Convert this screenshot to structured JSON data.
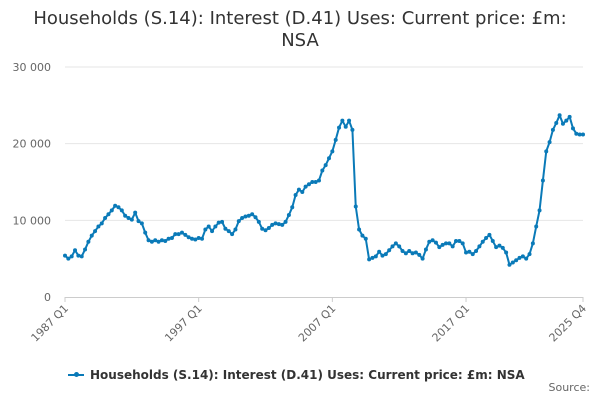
{
  "chart_data": {
    "type": "line",
    "title": "Households (S.14): Interest (D.41) Uses: Current price: £m: NSA",
    "xlabel": "",
    "ylabel": "",
    "ylim": [
      0,
      30000
    ],
    "yticks": [
      0,
      10000,
      20000,
      30000
    ],
    "ytick_labels": [
      "0",
      "10 000",
      "20 000",
      "30 000"
    ],
    "xtick_labels": [
      "1987 Q1",
      "1997 Q1",
      "2007 Q1",
      "2017 Q1",
      "2025 Q4"
    ],
    "grid": true,
    "legend_position": "bottom-left",
    "series": [
      {
        "name": "Households (S.14): Interest (D.41) Uses: Current price: £m: NSA",
        "color": "#0a7ab8",
        "x_start": "1987 Q1",
        "frequency": "quarterly",
        "values": [
          5400,
          5000,
          5300,
          6100,
          5400,
          5300,
          6200,
          7200,
          8000,
          8600,
          9200,
          9600,
          10300,
          10800,
          11300,
          11900,
          11700,
          11300,
          10600,
          10300,
          10100,
          11000,
          9900,
          9600,
          8400,
          7400,
          7200,
          7400,
          7200,
          7400,
          7300,
          7600,
          7700,
          8200,
          8200,
          8400,
          8100,
          7800,
          7600,
          7500,
          7700,
          7600,
          8800,
          9200,
          8600,
          9200,
          9700,
          9800,
          8900,
          8600,
          8200,
          8800,
          9900,
          10300,
          10500,
          10600,
          10800,
          10400,
          9800,
          8900,
          8700,
          9000,
          9400,
          9600,
          9500,
          9400,
          9800,
          10700,
          11700,
          13300,
          14000,
          13700,
          14400,
          14700,
          15000,
          15000,
          15200,
          16500,
          17200,
          18100,
          19000,
          20500,
          22100,
          23000,
          22200,
          23000,
          21800,
          11800,
          8800,
          8000,
          7600,
          4900,
          5100,
          5300,
          5900,
          5400,
          5600,
          6100,
          6600,
          7000,
          6600,
          6000,
          5700,
          6000,
          5700,
          5800,
          5500,
          5000,
          6200,
          7200,
          7400,
          7100,
          6500,
          6800,
          7000,
          7000,
          6600,
          7300,
          7300,
          7000,
          5800,
          5900,
          5600,
          6000,
          6600,
          7200,
          7700,
          8100,
          7300,
          6500,
          6700,
          6400,
          5800,
          4200,
          4500,
          4800,
          5100,
          5300,
          5000,
          5600,
          7000,
          9200,
          11300,
          15200,
          19000,
          20200,
          21800,
          22700,
          23700,
          22600,
          23000,
          23500,
          22000,
          21300,
          21200,
          21200
        ]
      }
    ]
  },
  "legend": {
    "label": "Households (S.14): Interest (D.41) Uses: Current price: £m: NSA"
  },
  "source_label": "Source:"
}
